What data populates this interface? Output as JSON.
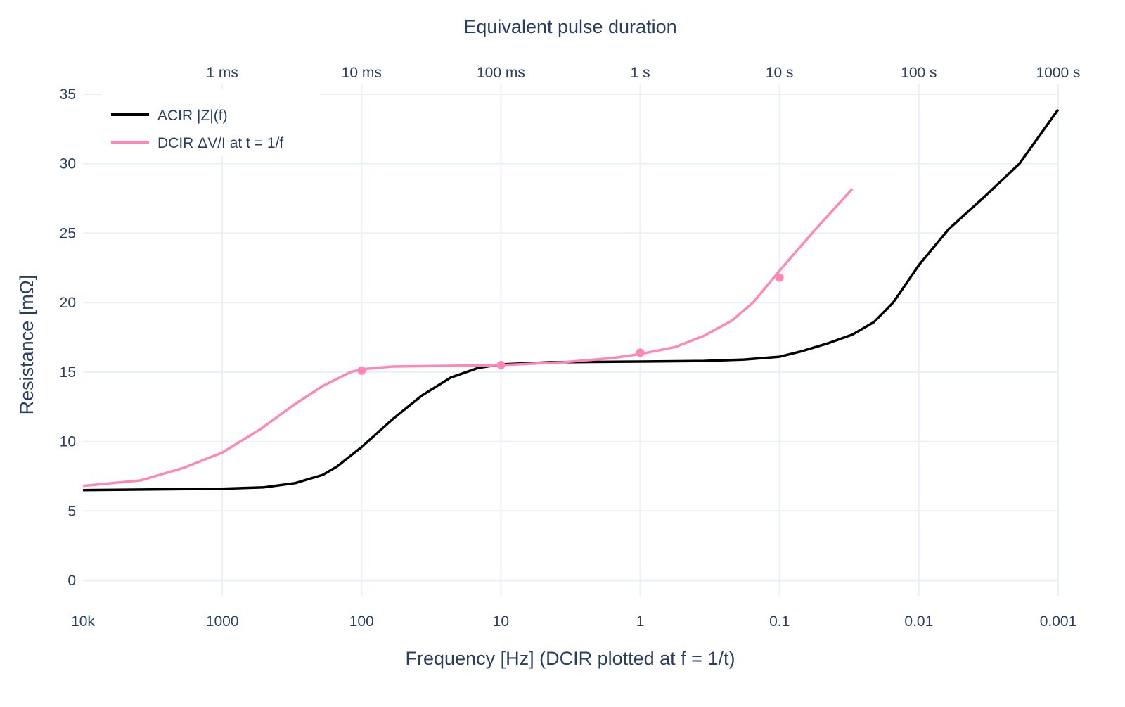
{
  "chart_data": {
    "type": "line",
    "title": "",
    "xlabel": "Frequency [Hz]  (DCIR plotted at f = 1/t)",
    "ylabel": "Resistance [mΩ]",
    "x2label": "Equivalent pulse duration",
    "xscale": "log",
    "xreversed": true,
    "xlim": [
      10000,
      0.001
    ],
    "ylim": [
      -1.5,
      35.5
    ],
    "grid": true,
    "legend_position": "top-left",
    "xticks": [
      {
        "value": 10000,
        "label": "10k"
      },
      {
        "value": 1000,
        "label": "1000"
      },
      {
        "value": 100,
        "label": "100"
      },
      {
        "value": 10,
        "label": "10"
      },
      {
        "value": 1,
        "label": "1"
      },
      {
        "value": 0.1,
        "label": "0.1"
      },
      {
        "value": 0.01,
        "label": "0.01"
      },
      {
        "value": 0.001,
        "label": "0.001"
      }
    ],
    "x2ticks": [
      {
        "value": 1000,
        "label": "1 ms"
      },
      {
        "value": 100,
        "label": "10 ms"
      },
      {
        "value": 10,
        "label": "100 ms"
      },
      {
        "value": 1,
        "label": "1 s"
      },
      {
        "value": 0.1,
        "label": "10 s"
      },
      {
        "value": 0.01,
        "label": "100 s"
      },
      {
        "value": 0.001,
        "label": "1000 s"
      }
    ],
    "yticks": [
      0,
      5,
      10,
      15,
      20,
      25,
      30,
      35
    ],
    "series": [
      {
        "name": "ACIR |Z|(f)",
        "color": "#000000",
        "x": [
          10000,
          1000,
          500,
          300,
          190,
          150,
          100,
          60,
          37,
          23,
          14.5,
          10,
          4.5,
          1,
          0.35,
          0.18,
          0.1,
          0.069,
          0.044,
          0.03,
          0.021,
          0.0153,
          0.01,
          0.0061,
          0.0034,
          0.0019,
          0.001
        ],
        "y": [
          6.5,
          6.6,
          6.7,
          7.0,
          7.6,
          8.2,
          9.6,
          11.6,
          13.3,
          14.6,
          15.3,
          15.55,
          15.7,
          15.75,
          15.8,
          15.9,
          16.1,
          16.5,
          17.1,
          17.7,
          18.6,
          20.0,
          22.7,
          25.3,
          27.6,
          30.0,
          33.9
        ]
      },
      {
        "name": "DCIR ΔV/I at t = 1/f",
        "color": "#ff87b7",
        "x": [
          10000,
          3850,
          1900,
          1000,
          530,
          300,
          190,
          120,
          100,
          60,
          10,
          3.6,
          1.6,
          1,
          0.56,
          0.35,
          0.22,
          0.155,
          0.1,
          0.055,
          0.03
        ],
        "y": [
          6.8,
          7.2,
          8.1,
          9.2,
          10.9,
          12.7,
          14.0,
          15.0,
          15.2,
          15.4,
          15.5,
          15.7,
          16.0,
          16.3,
          16.8,
          17.6,
          18.7,
          20.0,
          22.3,
          25.3,
          28.2
        ],
        "markers": {
          "x": [
            100,
            10,
            1,
            0.1
          ],
          "y": [
            15.1,
            15.5,
            16.4,
            21.8
          ]
        }
      }
    ]
  }
}
